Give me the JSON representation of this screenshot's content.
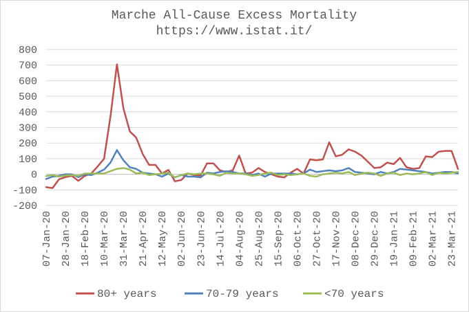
{
  "chart_data": {
    "type": "line",
    "title": "Marche All-Cause Excess Mortality",
    "subtitle": "https://www.istat.it/",
    "xlabel": "",
    "ylabel": "",
    "ylim": [
      -200,
      800
    ],
    "yticks": [
      -200,
      -100,
      0,
      100,
      200,
      300,
      400,
      500,
      600,
      700,
      800
    ],
    "grid": "horizontal",
    "legend_position": "bottom",
    "x": [
      "07-Jan-20",
      "14-Jan-20",
      "21-Jan-20",
      "28-Jan-20",
      "04-Feb-20",
      "11-Feb-20",
      "18-Feb-20",
      "25-Feb-20",
      "03-Mar-20",
      "10-Mar-20",
      "17-Mar-20",
      "24-Mar-20",
      "31-Mar-20",
      "07-Apr-20",
      "14-Apr-20",
      "21-Apr-20",
      "28-Apr-20",
      "05-May-20",
      "12-May-20",
      "19-May-20",
      "26-May-20",
      "02-Jun-20",
      "09-Jun-20",
      "16-Jun-20",
      "23-Jun-20",
      "30-Jun-20",
      "07-Jul-20",
      "14-Jul-20",
      "21-Jul-20",
      "28-Jul-20",
      "04-Aug-20",
      "11-Aug-20",
      "18-Aug-20",
      "25-Aug-20",
      "01-Sep-20",
      "08-Sep-20",
      "15-Sep-20",
      "22-Sep-20",
      "29-Sep-20",
      "06-Oct-20",
      "13-Oct-20",
      "20-Oct-20",
      "27-Oct-20",
      "03-Nov-20",
      "10-Nov-20",
      "17-Nov-20",
      "24-Nov-20",
      "01-Dec-20",
      "08-Dec-20",
      "15-Dec-20",
      "22-Dec-20",
      "29-Dec-20",
      "05-Jan-21",
      "12-Jan-21",
      "19-Jan-21",
      "26-Jan-21",
      "02-Feb-21",
      "09-Feb-21",
      "16-Feb-21",
      "23-Feb-21",
      "02-Mar-21",
      "09-Mar-21",
      "16-Mar-21",
      "23-Mar-21",
      "30-Mar-21"
    ],
    "tick_labels": [
      "07-Jan-20",
      "28-Jan-20",
      "18-Feb-20",
      "10-Mar-20",
      "31-Mar-20",
      "21-Apr-20",
      "12-May-20",
      "02-Jun-20",
      "23-Jun-20",
      "14-Jul-20",
      "04-Aug-20",
      "25-Aug-20",
      "15-Sep-20",
      "06-Oct-20",
      "27-Oct-20",
      "17-Nov-20",
      "08-Dec-20",
      "29-Dec-20",
      "19-Jan-21",
      "09-Feb-21",
      "02-Mar-21",
      "23-Mar-21"
    ],
    "series": [
      {
        "name": "80+ years",
        "color": "#c0504d",
        "values": [
          -83,
          -88,
          -32,
          -18,
          -10,
          -42,
          -10,
          5,
          50,
          100,
          370,
          705,
          425,
          275,
          235,
          130,
          60,
          60,
          5,
          28,
          -45,
          -37,
          5,
          -5,
          -8,
          70,
          70,
          25,
          15,
          25,
          120,
          5,
          10,
          40,
          15,
          0,
          -15,
          -20,
          10,
          35,
          5,
          95,
          90,
          95,
          205,
          115,
          125,
          160,
          145,
          120,
          80,
          40,
          45,
          75,
          65,
          105,
          45,
          35,
          40,
          115,
          110,
          145,
          150,
          150,
          35
        ]
      },
      {
        "name": "70-79 years",
        "color": "#4f81bd",
        "values": [
          -30,
          -15,
          -10,
          0,
          0,
          -18,
          0,
          -5,
          10,
          30,
          75,
          155,
          90,
          45,
          35,
          10,
          5,
          0,
          -15,
          5,
          -20,
          -5,
          -15,
          -15,
          -20,
          10,
          5,
          15,
          20,
          15,
          5,
          5,
          -5,
          5,
          -15,
          5,
          5,
          5,
          5,
          0,
          5,
          30,
          15,
          20,
          25,
          20,
          25,
          40,
          15,
          10,
          5,
          0,
          15,
          5,
          15,
          35,
          30,
          25,
          20,
          15,
          5,
          10,
          15,
          15,
          5
        ]
      },
      {
        "name": "<70 years",
        "color": "#9bbb59",
        "values": [
          -12,
          -5,
          -15,
          -8,
          -5,
          -10,
          5,
          5,
          5,
          5,
          20,
          35,
          40,
          30,
          5,
          10,
          -5,
          0,
          5,
          10,
          -20,
          -5,
          5,
          0,
          5,
          5,
          0,
          -10,
          10,
          5,
          5,
          0,
          -10,
          -5,
          5,
          10,
          -5,
          0,
          -5,
          0,
          5,
          -10,
          -15,
          0,
          5,
          10,
          5,
          15,
          -5,
          5,
          10,
          5,
          -10,
          5,
          10,
          -5,
          5,
          0,
          5,
          15,
          -5,
          10,
          5,
          10,
          15
        ]
      }
    ]
  }
}
